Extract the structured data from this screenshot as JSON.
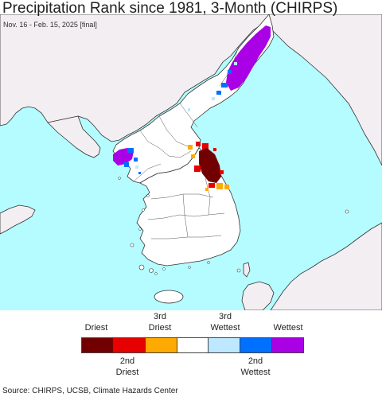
{
  "title": "Precipitation Rank since 1981, 3-Month (CHIRPS)",
  "subtitle": "Nov. 16 - Feb. 15, 2025 [final]",
  "source": "Source: CHIRPS, UCSB, Climate Hazards Center",
  "colors": {
    "water": "#b4fcff",
    "land_in": "#ffffff",
    "land_out": "#f2eef2",
    "border": "#333333"
  },
  "legend": {
    "top_labels": [
      {
        "lines": [
          "Driest"
        ]
      },
      {
        "lines": [
          "3rd",
          "Driest"
        ]
      },
      {
        "lines": [
          "3rd",
          "Wettest"
        ]
      },
      {
        "lines": [
          "Wettest"
        ]
      }
    ],
    "bottom_labels": [
      {
        "lines": [
          "2nd",
          "Driest"
        ]
      },
      {
        "lines": [
          "2nd",
          "Wettest"
        ]
      }
    ],
    "bins": [
      {
        "name": "Driest",
        "color": "#730000"
      },
      {
        "name": "2nd Driest",
        "color": "#e60000"
      },
      {
        "name": "3rd Driest",
        "color": "#ffaa00"
      },
      {
        "name": "Normal",
        "color": "#ffffff"
      },
      {
        "name": "3rd Wettest",
        "color": "#bee8ff"
      },
      {
        "name": "2nd Wettest",
        "color": "#0070ff"
      },
      {
        "name": "Wettest",
        "color": "#a900e6"
      }
    ]
  }
}
